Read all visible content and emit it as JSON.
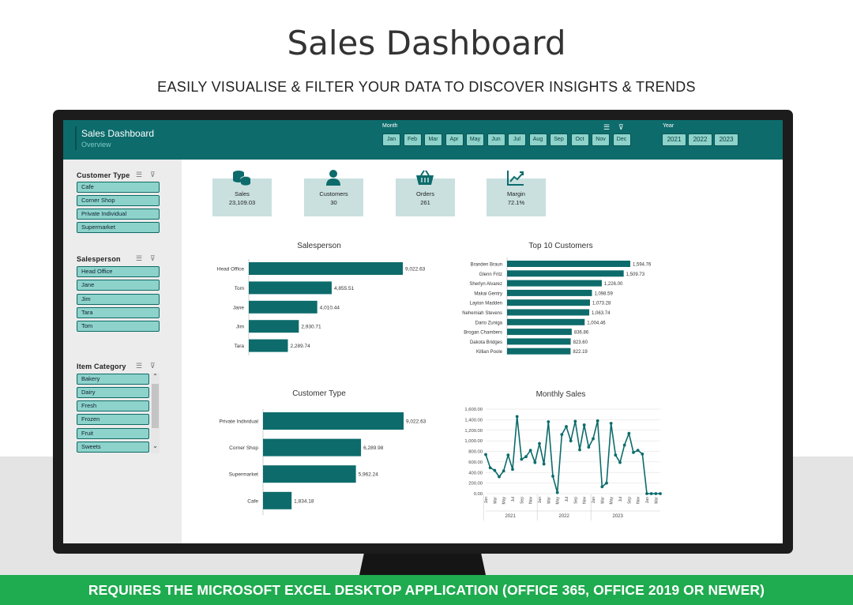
{
  "hero": {
    "title": "Sales Dashboard",
    "subtitle": "EASILY VISUALISE & FILTER YOUR DATA TO DISCOVER INSIGHTS & TRENDS"
  },
  "footer": "REQUIRES THE MICROSOFT EXCEL DESKTOP APPLICATION (OFFICE 365, OFFICE 2019 OR NEWER)",
  "dashboard": {
    "title": "Sales Dashboard",
    "subtitle": "Overview",
    "accent": "#0d6b6b",
    "button_color": "#8dd3cb"
  },
  "month_slicer": {
    "label": "Month",
    "items": [
      "Jan",
      "Feb",
      "Mar",
      "Apr",
      "May",
      "Jun",
      "Jul",
      "Aug",
      "Sep",
      "Oct",
      "Nov",
      "Dec"
    ]
  },
  "year_slicer": {
    "label": "Year",
    "items": [
      "2021",
      "2022",
      "2023"
    ]
  },
  "slicers": {
    "customer_type": {
      "title": "Customer Type",
      "items": [
        "Cafe",
        "Corner Shop",
        "Private Individual",
        "Supermarket"
      ]
    },
    "salesperson": {
      "title": "Salesperson",
      "items": [
        "Head Office",
        "Jane",
        "Jim",
        "Tara",
        "Tom"
      ]
    },
    "item_category": {
      "title": "Item Category",
      "items": [
        "Bakery",
        "Dairy",
        "Fresh",
        "Frozen",
        "Fruit",
        "Sweets"
      ]
    }
  },
  "kpis": [
    {
      "label": "Sales",
      "value": "23,109.03",
      "icon": "coins-icon"
    },
    {
      "label": "Customers",
      "value": "30",
      "icon": "person-icon"
    },
    {
      "label": "Orders",
      "value": "261",
      "icon": "basket-icon"
    },
    {
      "label": "Margin",
      "value": "72.1%",
      "icon": "trend-chart-icon"
    }
  ],
  "chart_data": [
    {
      "type": "bar",
      "orientation": "horizontal",
      "title": "Salesperson",
      "categories": [
        "Head Office",
        "Tom",
        "Jane",
        "Jim",
        "Tara"
      ],
      "values": [
        9022.63,
        4855.51,
        4010.44,
        2930.71,
        2289.74
      ],
      "labels": [
        "9,022.63",
        "4,855.51",
        "4,010.44",
        "2,930.71",
        "2,289.74"
      ],
      "color": "#0d6b6b"
    },
    {
      "type": "bar",
      "orientation": "horizontal",
      "title": "Top 10 Customers",
      "categories": [
        "Branden Braun",
        "Glenn Fritz",
        "Sherlyn Alvarez",
        "Makai Gentry",
        "Layton Madden",
        "Nehemiah Stevens",
        "Dario Zuniga",
        "Brogan Chambers",
        "Dakota Bridges",
        "Killian Poole"
      ],
      "values": [
        1594.76,
        1509.73,
        1226.0,
        1098.59,
        1073.28,
        1063.74,
        1004.46,
        836.86,
        823.6,
        822.19
      ],
      "labels": [
        "1,594.76",
        "1,509.73",
        "1,226.00",
        "1,098.59",
        "1,073.28",
        "1,063.74",
        "1,004.46",
        "836.86",
        "823.60",
        "822.19"
      ],
      "color": "#0d6b6b"
    },
    {
      "type": "bar",
      "orientation": "horizontal",
      "title": "Customer Type",
      "categories": [
        "Private Individual",
        "Corner Shop",
        "Supermarket",
        "Cafe"
      ],
      "values": [
        9022.63,
        6289.98,
        5962.24,
        1834.18
      ],
      "labels": [
        "9,022.63",
        "6,289.98",
        "5,962.24",
        "1,834.18"
      ],
      "color": "#0d6b6b"
    },
    {
      "type": "line",
      "title": "Monthly Sales",
      "ylim": [
        0,
        1600
      ],
      "yticks": [
        "0.00",
        "200.00",
        "400.00",
        "600.00",
        "800.00",
        "1,000.00",
        "1,200.00",
        "1,400.00",
        "1,600.00"
      ],
      "month_ticks": [
        "Jan",
        "Mar",
        "May",
        "Jul",
        "Sep",
        "Nov"
      ],
      "years": [
        "2021",
        "2022",
        "2023"
      ],
      "values": [
        740,
        490,
        440,
        320,
        430,
        730,
        460,
        1460,
        650,
        700,
        820,
        590,
        950,
        560,
        1360,
        330,
        20,
        1120,
        1270,
        1000,
        1370,
        830,
        1300,
        880,
        1040,
        1380,
        130,
        200,
        1330,
        730,
        590,
        920,
        1140,
        780,
        820,
        750,
        0,
        0,
        0,
        0
      ],
      "color": "#0d6b6b",
      "grid": true
    }
  ]
}
